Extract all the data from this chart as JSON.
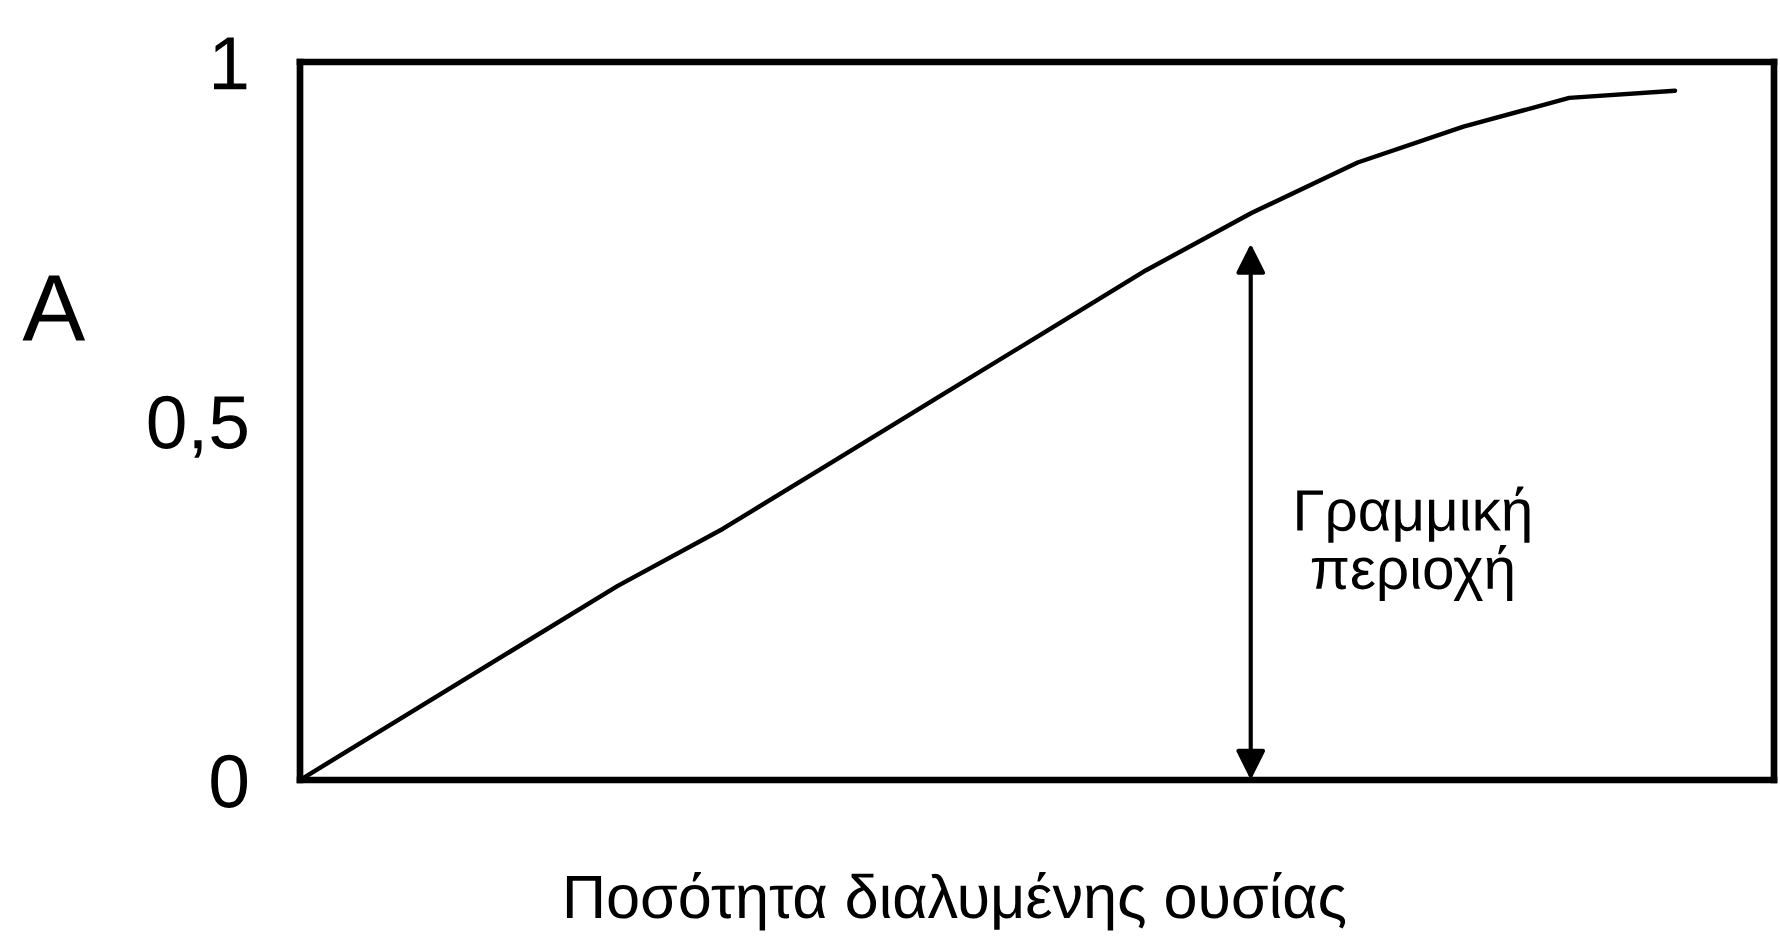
{
  "chart_data": {
    "type": "line",
    "ylabel": "A",
    "xlabel": "Ποσότητα διαλυμένης ουσίας",
    "categories": [
      null,
      null,
      null,
      null,
      null,
      null,
      null,
      null,
      null,
      null,
      null,
      null,
      null,
      null
    ],
    "series": [
      {
        "color": "#000000",
        "values": [
          0,
          0.09,
          0.18,
          0.27,
          0.35,
          0.44,
          0.53,
          0.62,
          0.71,
          0.79,
          0.86,
          0.91,
          0.95,
          0.96
        ]
      }
    ],
    "ylim": [
      0,
      1
    ],
    "yticks": [
      0,
      {
        "value": 0.5,
        "label": "0,5"
      },
      1
    ],
    "tick_labels": "y",
    "annotations": [
      "Γραμμική\nπεριοχή"
    ],
    "grid": false,
    "legend": false,
    "marker": "none",
    "line_style": "solid"
  }
}
